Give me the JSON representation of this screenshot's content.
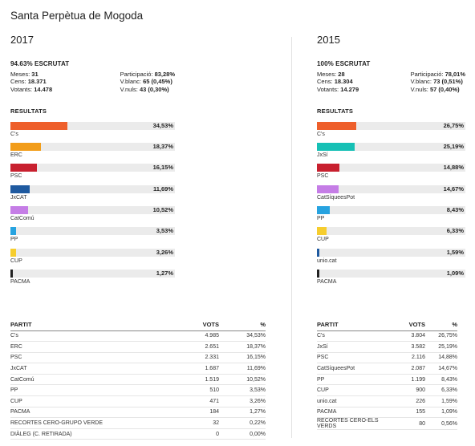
{
  "page_title": "Santa Perpètua de Mogoda",
  "elections": [
    {
      "year": "2017",
      "escrutat": "94.63% ESCRUTAT",
      "stats_left": [
        {
          "label": "Meses:",
          "value": "31"
        },
        {
          "label": "Cens:",
          "value": "18.371"
        },
        {
          "label": "Votants:",
          "value": "14.478"
        }
      ],
      "stats_right": [
        {
          "label": "Participació:",
          "value": "83,28%"
        },
        {
          "label": "V.blanc:",
          "value": "65 (0,45%)"
        },
        {
          "label": "V.nuls:",
          "value": "43 (0,30%)"
        }
      ],
      "results_heading": "RESULTATS",
      "table_headers": {
        "party": "PARTIT",
        "votes": "VOTS",
        "pct": "%"
      },
      "table_rows": [
        {
          "party": "C's",
          "votes": "4.985",
          "pct": "34,53%"
        },
        {
          "party": "ERC",
          "votes": "2.651",
          "pct": "18,37%"
        },
        {
          "party": "PSC",
          "votes": "2.331",
          "pct": "16,15%"
        },
        {
          "party": "JxCAT",
          "votes": "1.687",
          "pct": "11,69%"
        },
        {
          "party": "CatComú",
          "votes": "1.519",
          "pct": "10,52%"
        },
        {
          "party": "PP",
          "votes": "510",
          "pct": "3,53%"
        },
        {
          "party": "CUP",
          "votes": "471",
          "pct": "3,26%"
        },
        {
          "party": "PACMA",
          "votes": "184",
          "pct": "1,27%"
        },
        {
          "party": "RECORTES CERO-GRUPO VERDE",
          "votes": "32",
          "pct": "0,22%"
        },
        {
          "party": "DIÀLEG (C. RETIRADA)",
          "votes": "0",
          "pct": "0,00%"
        }
      ]
    },
    {
      "year": "2015",
      "escrutat": "100% ESCRUTAT",
      "stats_left": [
        {
          "label": "Meses:",
          "value": "28"
        },
        {
          "label": "Cens:",
          "value": "18.304"
        },
        {
          "label": "Votants:",
          "value": "14.279"
        }
      ],
      "stats_right": [
        {
          "label": "Participació:",
          "value": "78,01%"
        },
        {
          "label": "V.blanc:",
          "value": "73 (0,51%)"
        },
        {
          "label": "V.nuls:",
          "value": "57 (0,40%)"
        }
      ],
      "results_heading": "RESULTATS",
      "table_headers": {
        "party": "PARTIT",
        "votes": "VOTS",
        "pct": "%"
      },
      "table_rows": [
        {
          "party": "C's",
          "votes": "3.804",
          "pct": "26,75%"
        },
        {
          "party": "JxSí",
          "votes": "3.582",
          "pct": "25,19%"
        },
        {
          "party": "PSC",
          "votes": "2.116",
          "pct": "14,88%"
        },
        {
          "party": "CatSíqueesPot",
          "votes": "2.087",
          "pct": "14,67%"
        },
        {
          "party": "PP",
          "votes": "1.199",
          "pct": "8,43%"
        },
        {
          "party": "CUP",
          "votes": "900",
          "pct": "6,33%"
        },
        {
          "party": "unio.cat",
          "votes": "226",
          "pct": "1,59%"
        },
        {
          "party": "PACMA",
          "votes": "155",
          "pct": "1,09%"
        },
        {
          "party": "RECORTES CERO-ELS VERDS",
          "votes": "80",
          "pct": "0,56%"
        }
      ]
    }
  ],
  "chart_data": [
    {
      "type": "bar",
      "orientation": "horizontal",
      "title": "2017",
      "xlim": [
        0,
        100
      ],
      "categories": [
        "C's",
        "ERC",
        "PSC",
        "JxCAT",
        "CatComú",
        "PP",
        "CUP",
        "PACMA"
      ],
      "values": [
        34.53,
        18.37,
        16.15,
        11.69,
        10.52,
        3.53,
        3.26,
        1.27
      ],
      "value_labels": [
        "34,53%",
        "18,37%",
        "16,15%",
        "11,69%",
        "10,52%",
        "3,53%",
        "3,26%",
        "1,27%"
      ],
      "colors": [
        "#ee5f2b",
        "#f29d1a",
        "#c8202f",
        "#1f5aa0",
        "#c57de6",
        "#27a3e0",
        "#f6cd2e",
        "#222222"
      ]
    },
    {
      "type": "bar",
      "orientation": "horizontal",
      "title": "2015",
      "xlim": [
        0,
        100
      ],
      "categories": [
        "C's",
        "JxSí",
        "PSC",
        "CatSíqueesPot",
        "PP",
        "CUP",
        "unio.cat",
        "PACMA"
      ],
      "values": [
        26.75,
        25.19,
        14.88,
        14.67,
        8.43,
        6.33,
        1.59,
        1.09
      ],
      "value_labels": [
        "26,75%",
        "25,19%",
        "14,88%",
        "14,67%",
        "8,43%",
        "6,33%",
        "1,59%",
        "1,09%"
      ],
      "colors": [
        "#ee5f2b",
        "#16c0b5",
        "#c8202f",
        "#c57de6",
        "#27a3e0",
        "#f6cd2e",
        "#1f5aa0",
        "#222222"
      ]
    }
  ]
}
